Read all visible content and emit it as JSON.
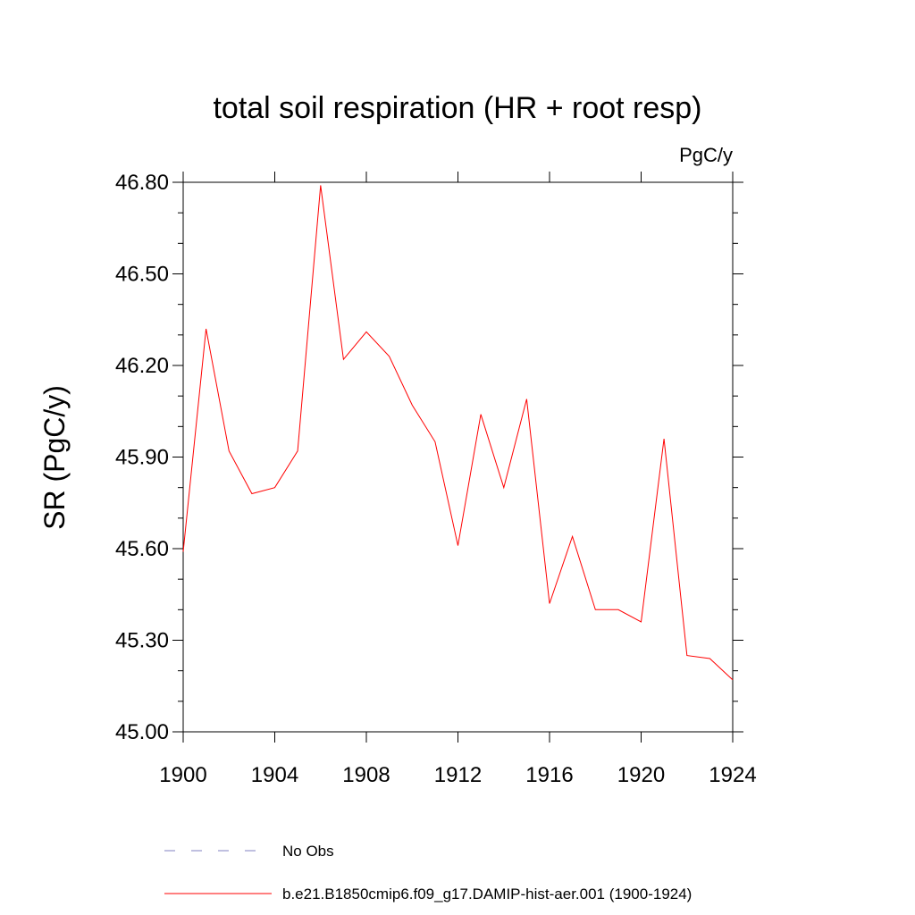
{
  "chart_data": {
    "type": "line",
    "title": "total soil respiration (HR + root resp)",
    "units_label": "PgC/y",
    "ylabel": "SR  (PgC/y)",
    "xlabel": "",
    "xlim": [
      1900,
      1924
    ],
    "ylim": [
      45.0,
      46.8
    ],
    "xticks": [
      1900,
      1904,
      1908,
      1912,
      1916,
      1920,
      1924
    ],
    "xtick_labels": [
      "1900",
      "1904",
      "1908",
      "1912",
      "1916",
      "1920",
      "1924"
    ],
    "yticks": [
      45.0,
      45.3,
      45.6,
      45.9,
      46.2,
      46.5,
      46.8
    ],
    "ytick_labels": [
      "45.00",
      "45.30",
      "45.60",
      "45.90",
      "46.20",
      "46.50",
      "46.80"
    ],
    "grid": false,
    "legend_position": "bottom",
    "series": [
      {
        "name": "b.e21.B1850cmip6.f09_g17.DAMIP-hist-aer.001 (1900-1924)",
        "color": "#ff0000",
        "style": "solid",
        "x": [
          1900,
          1901,
          1902,
          1903,
          1904,
          1905,
          1906,
          1907,
          1908,
          1909,
          1910,
          1911,
          1912,
          1913,
          1914,
          1915,
          1916,
          1917,
          1918,
          1919,
          1920,
          1921,
          1922,
          1923,
          1924
        ],
        "y": [
          45.59,
          46.32,
          45.92,
          45.78,
          45.8,
          45.92,
          46.79,
          46.22,
          46.31,
          46.23,
          46.07,
          45.95,
          45.61,
          46.04,
          45.8,
          46.09,
          45.42,
          45.64,
          45.4,
          45.4,
          45.36,
          45.96,
          45.25,
          45.24,
          45.17
        ]
      }
    ],
    "legend": [
      {
        "label": "No Obs",
        "color": "#8080c0",
        "style": "dashed"
      },
      {
        "label": "b.e21.B1850cmip6.f09_g17.DAMIP-hist-aer.001 (1900-1924)",
        "color": "#ff0000",
        "style": "solid"
      }
    ]
  }
}
